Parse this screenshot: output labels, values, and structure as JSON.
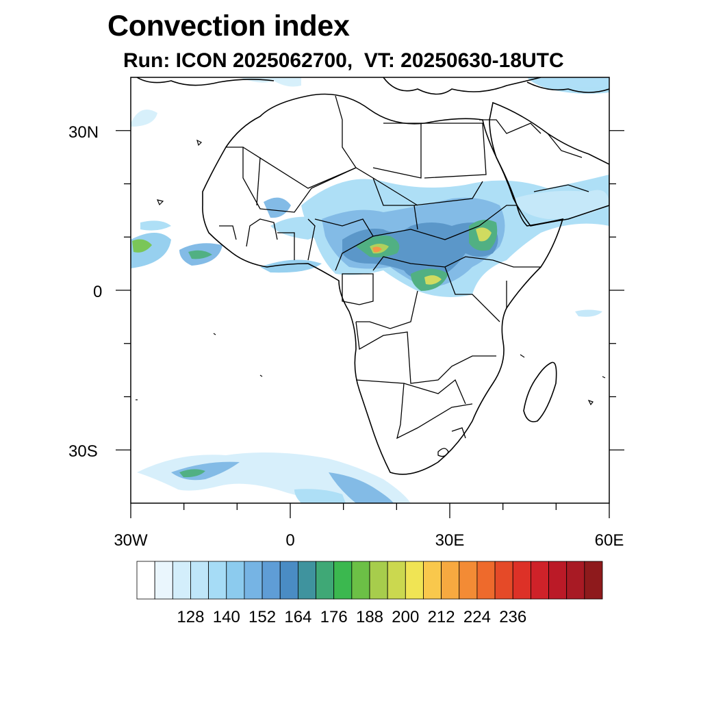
{
  "title": "Convection index",
  "subtitle": "Run: ICON 2025062700,  VT: 20250630-18UTC",
  "map": {
    "lat_labels": [
      "30N",
      "0",
      "30S"
    ],
    "lon_labels": [
      "30W",
      "0",
      "30E",
      "60E"
    ],
    "lat_values": [
      30,
      0,
      -30
    ],
    "lon_values": [
      -30,
      0,
      30,
      60
    ],
    "extent": {
      "lon_min": -30,
      "lon_max": 60,
      "lat_min": -40,
      "lat_max": 40
    },
    "land_outline_color": "#000000",
    "ocean_color": "#ffffff"
  },
  "colorbar": {
    "labels": [
      "128",
      "140",
      "152",
      "164",
      "176",
      "188",
      "200",
      "212",
      "224",
      "236"
    ],
    "colors": [
      "#ffffff",
      "#eaf6fd",
      "#d3eefb",
      "#bfe6f9",
      "#a6dcf6",
      "#8ccbee",
      "#76b4e4",
      "#5f9dd6",
      "#4a8cc4",
      "#3f939e",
      "#3fa876",
      "#3bb84f",
      "#6cc046",
      "#a7cd4c",
      "#cbd84f",
      "#f0e454",
      "#f9c84c",
      "#f7a940",
      "#f38b35",
      "#ee6a2c",
      "#e54a28",
      "#dd3127",
      "#cf2229",
      "#bb1a27",
      "#a81a24",
      "#8e1a1c"
    ]
  }
}
